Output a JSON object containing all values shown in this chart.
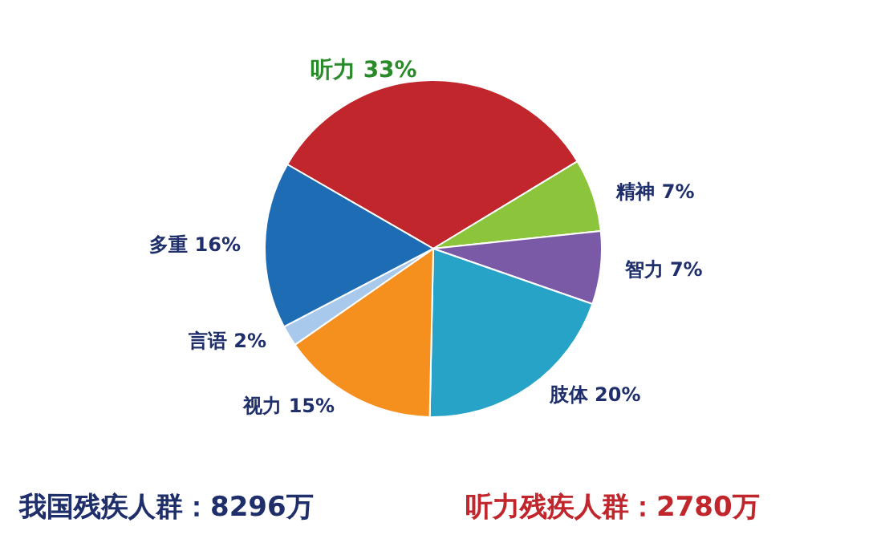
{
  "chart_data": {
    "type": "pie",
    "categories": [
      "听力",
      "精神",
      "智力",
      "肢体",
      "视力",
      "言语",
      "多重"
    ],
    "values": [
      33,
      7,
      7,
      20,
      15,
      2,
      16
    ],
    "value_labels": [
      "33%",
      "7%",
      "7%",
      "20%",
      "15%",
      "2%",
      "16%"
    ],
    "colors": [
      "#c0262c",
      "#8cc43c",
      "#7a5aa6",
      "#26a3c6",
      "#f5901e",
      "#a8c8ec",
      "#1e6db4"
    ],
    "annotations": [
      "我国残疾人群：8296万",
      "听力残疾人群：2780万"
    ]
  }
}
